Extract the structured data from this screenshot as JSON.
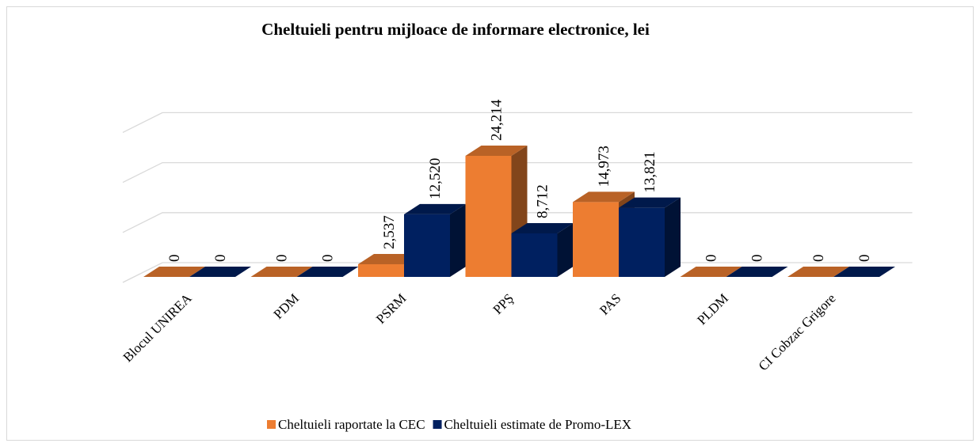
{
  "chart_data": {
    "type": "bar3d",
    "title": "Cheltuieli pentru mijloace de informare electronice, lei",
    "categories": [
      "Blocul UNIREA",
      "PDM",
      "PSRM",
      "PPŞ",
      "PAS",
      "PLDM",
      "CI Cobzac Grigore"
    ],
    "series": [
      {
        "name": "Cheltuieli raportate la CEC",
        "color": "#ED7D31",
        "values": [
          0,
          0,
          2537,
          24214,
          14973,
          0,
          0
        ],
        "value_labels": [
          "0",
          "0",
          "2,537",
          "24,214",
          "14,973",
          "0",
          "0"
        ]
      },
      {
        "name": "Cheltuieli estimate de Promo-LEX",
        "color": "#002060",
        "values": [
          0,
          0,
          12520,
          8712,
          13821,
          0,
          0
        ],
        "value_labels": [
          "0",
          "0",
          "12,520",
          "8,712",
          "13,821",
          "0",
          "0"
        ]
      }
    ],
    "ylim": [
      0,
      30000
    ],
    "yticks": [
      0,
      10000,
      20000,
      30000
    ],
    "grid": true,
    "legend": "bottom"
  }
}
